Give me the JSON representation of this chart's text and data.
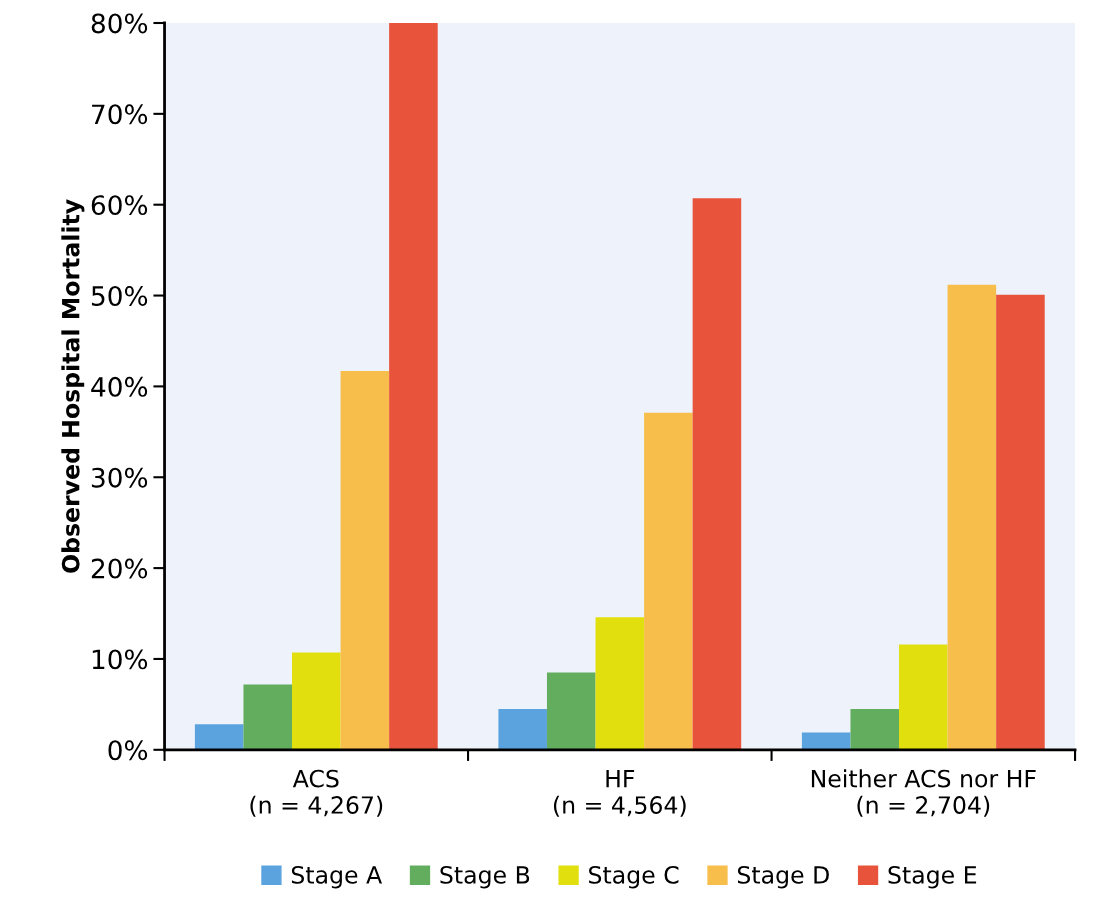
{
  "chart_data": {
    "type": "bar",
    "ylabel": "Observed Hospital Mortality",
    "categories": [
      "ACS\n(n = 4,267)",
      "HF\n(n = 4,564)",
      "Neither ACS nor HF\n(n = 2,704)"
    ],
    "series": [
      {
        "name": "Stage A",
        "color": "#5ba3de",
        "values": [
          2.8,
          4.5,
          1.9
        ]
      },
      {
        "name": "Stage B",
        "color": "#62ad5e",
        "values": [
          7.2,
          8.5,
          4.5
        ]
      },
      {
        "name": "Stage C",
        "color": "#e1df0e",
        "values": [
          10.7,
          14.6,
          11.6
        ]
      },
      {
        "name": "Stage D",
        "color": "#f8be4c",
        "values": [
          41.7,
          37.1,
          51.2
        ]
      },
      {
        "name": "Stage E",
        "color": "#e8533b",
        "values": [
          80,
          60.7,
          50.1
        ]
      }
    ],
    "ylim": [
      0,
      80
    ],
    "yticks": [
      {
        "value": 0,
        "label": "0%"
      },
      {
        "value": 10,
        "label": "10%"
      },
      {
        "value": 20,
        "label": "20%"
      },
      {
        "value": 30,
        "label": "30%"
      },
      {
        "value": 40,
        "label": "40%"
      },
      {
        "value": 50,
        "label": "50%"
      },
      {
        "value": 60,
        "label": "60%"
      },
      {
        "value": 70,
        "label": "70%"
      },
      {
        "value": 80,
        "label": "80%"
      }
    ],
    "grid": false,
    "legend": "bottom"
  }
}
